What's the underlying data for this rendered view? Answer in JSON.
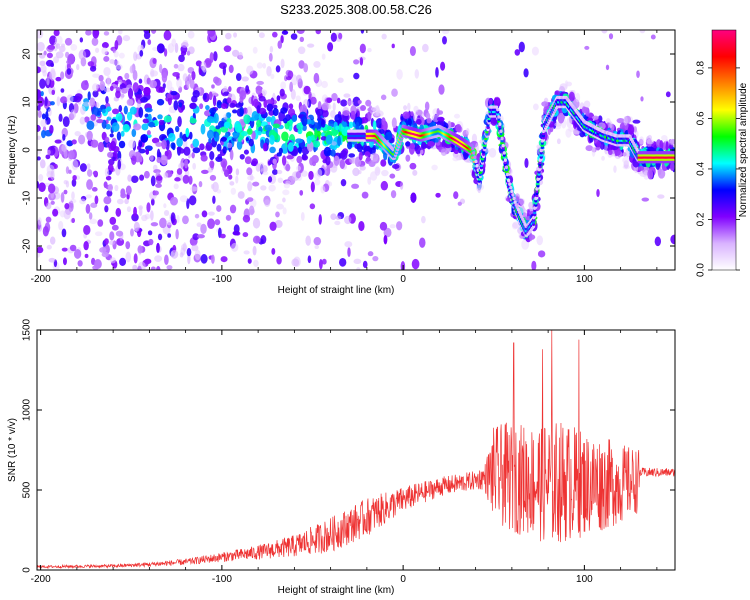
{
  "title": "S233.2025.308.00.58.C26",
  "chart_data": [
    {
      "type": "heatmap",
      "xlabel": "Height of straight line (km)",
      "ylabel": "Frequency (Hz)",
      "xlim": [
        -202,
        150
      ],
      "ylim": [
        -25,
        25
      ],
      "xticks": [
        -200,
        -100,
        0,
        100
      ],
      "yticks": [
        -20,
        -10,
        0,
        10,
        20
      ],
      "colorbar": {
        "label": "Normalized spectral amplitude",
        "range": [
          0,
          0.95
        ],
        "ticks": [
          "0.0",
          "0.2",
          "0.4",
          "0.6",
          "0.8"
        ],
        "colors": [
          "#ffffff",
          "#d9b3ff",
          "#8000ff",
          "#0000ff",
          "#00ffff",
          "#00ff00",
          "#ffff00",
          "#ff8000",
          "#ff0000",
          "#ff0080"
        ]
      },
      "ridge": {
        "description_points_x": [
          -200,
          -160,
          -120,
          -80,
          -50,
          -30,
          -15,
          -5,
          0,
          10,
          20,
          30,
          38,
          42,
          48,
          52,
          58,
          62,
          68,
          72,
          78,
          85,
          90,
          100,
          110,
          118,
          125,
          130,
          150
        ],
        "description_points_y": [
          8,
          6,
          5,
          4,
          3,
          3,
          3,
          -1,
          4,
          3,
          4,
          2,
          0,
          -6,
          8,
          8,
          -7,
          -12,
          -17,
          -15,
          5,
          10,
          10,
          5,
          3,
          2,
          2,
          -1.5,
          -1.5
        ]
      }
    },
    {
      "type": "line",
      "xlabel": "Height of straight line (km)",
      "ylabel": "SNR (10 * v/v)",
      "xlim": [
        -202,
        150
      ],
      "ylim": [
        0,
        1500
      ],
      "xticks": [
        -200,
        -100,
        0,
        100
      ],
      "yticks": [
        0,
        500,
        1000,
        1500
      ],
      "color": "#ee3333",
      "envelope_x": [
        -202,
        -160,
        -140,
        -120,
        -100,
        -80,
        -60,
        -40,
        -20,
        0,
        20,
        40,
        45,
        50,
        60,
        70,
        80,
        90,
        100,
        110,
        120,
        130,
        131,
        150
      ],
      "envelope_mean": [
        20,
        25,
        35,
        50,
        80,
        110,
        150,
        220,
        330,
        440,
        520,
        560,
        580,
        600,
        580,
        560,
        550,
        550,
        540,
        540,
        540,
        560,
        610,
        610
      ],
      "envelope_spread": [
        8,
        10,
        14,
        20,
        30,
        45,
        70,
        110,
        120,
        80,
        60,
        60,
        80,
        300,
        350,
        350,
        400,
        380,
        330,
        300,
        250,
        200,
        30,
        25
      ],
      "peaks": [
        {
          "x": 61,
          "y": 1420
        },
        {
          "x": 77,
          "y": 1380
        },
        {
          "x": 82,
          "y": 1500
        },
        {
          "x": 97,
          "y": 1440
        }
      ]
    }
  ]
}
